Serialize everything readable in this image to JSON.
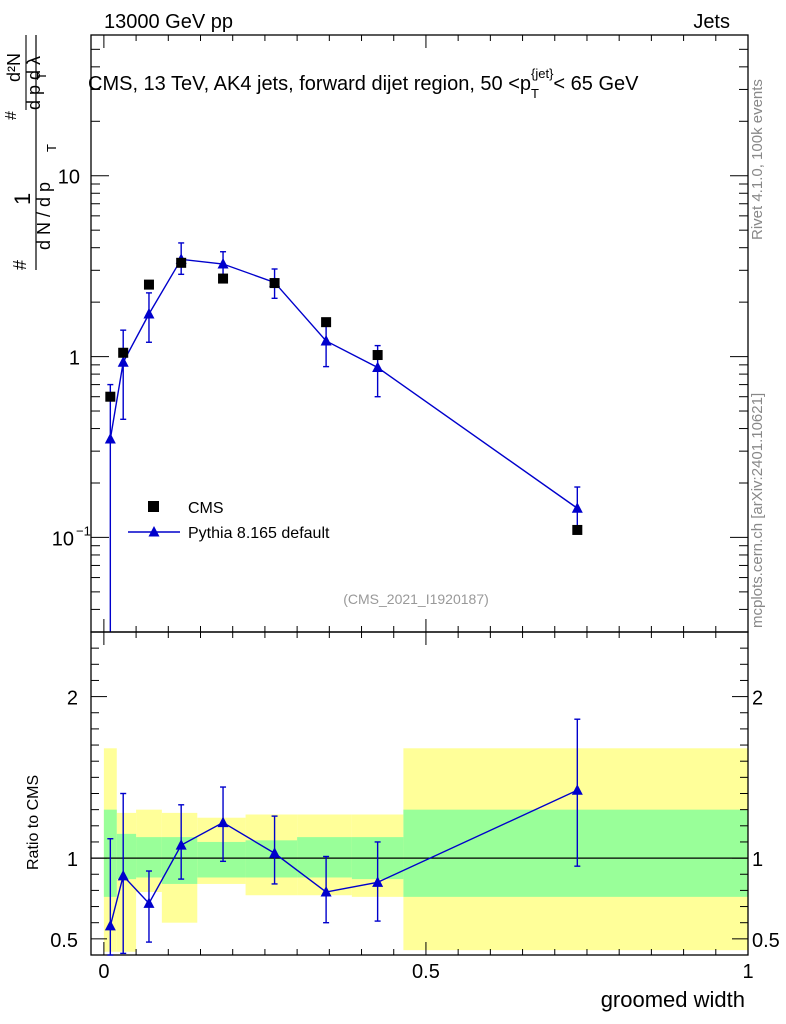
{
  "header": {
    "left": "13000 GeV pp",
    "right": "Jets"
  },
  "side_text": {
    "rivet": "Rivet 4.1.0,  100k events",
    "source": "mcplots.cern.ch [arXiv:2401.10621]"
  },
  "colors": {
    "cms": "#000000",
    "pythia": "#0000cc",
    "band_stat": "#99ff99",
    "band_total": "#ffff99"
  },
  "chart_data": [
    {
      "type": "scatter",
      "title": "CMS, 13 TeV, AK4 jets, forward dijet region, 50 <p_T^{jet}< 65 GeV",
      "ylabel": "1/(dN/dp_T) d²N/(dp_T dλ)",
      "yscale": "log",
      "ylim": [
        0.03,
        60
      ],
      "xlim": [
        -0.02,
        1.0
      ],
      "y_tick_labels": [
        "10^-1",
        "1",
        "10"
      ],
      "annotation": "(CMS_2021_I1920187)",
      "legend": [
        "CMS",
        "Pythia 8.165 default"
      ],
      "legend_position": "lower-left",
      "series": [
        {
          "name": "CMS",
          "marker": "square",
          "x": [
            0.01,
            0.03,
            0.07,
            0.12,
            0.185,
            0.265,
            0.345,
            0.425,
            0.735
          ],
          "y": [
            0.6,
            1.05,
            2.5,
            3.3,
            2.7,
            2.55,
            1.55,
            1.02,
            0.11
          ]
        },
        {
          "name": "Pythia 8.165 default",
          "marker": "triangle",
          "x": [
            0.01,
            0.03,
            0.07,
            0.12,
            0.185,
            0.265,
            0.345,
            0.425,
            0.735
          ],
          "y": [
            0.35,
            0.93,
            1.72,
            3.45,
            3.25,
            2.57,
            1.22,
            0.87,
            0.145
          ],
          "y_low": [
            0.001,
            0.45,
            1.2,
            2.85,
            2.75,
            2.1,
            0.88,
            0.6,
            0.115
          ],
          "y_high": [
            0.7,
            1.4,
            2.25,
            4.25,
            3.8,
            3.05,
            1.55,
            1.15,
            0.19
          ]
        }
      ]
    },
    {
      "type": "scatter",
      "ylabel": "Ratio to CMS",
      "xlabel": "groomed width",
      "ylim": [
        0.4,
        2.4
      ],
      "xlim": [
        -0.02,
        1.0
      ],
      "x_tick_labels": [
        "0",
        "0.5",
        "1"
      ],
      "y_tick_labels": [
        "0.5",
        "1",
        "2"
      ],
      "bands": {
        "edges": [
          0.0,
          0.02,
          0.05,
          0.09,
          0.145,
          0.22,
          0.3,
          0.385,
          0.465,
          1.0
        ],
        "stat": [
          [
            0.76,
            1.3
          ],
          [
            0.87,
            1.15
          ],
          [
            0.88,
            1.13
          ],
          [
            0.84,
            1.13
          ],
          [
            0.88,
            1.1
          ],
          [
            0.88,
            1.11
          ],
          [
            0.88,
            1.13
          ],
          [
            0.87,
            1.13
          ],
          [
            0.76,
            1.3
          ]
        ],
        "total": [
          [
            0.42,
            1.68
          ],
          [
            0.42,
            1.28
          ],
          [
            0.79,
            1.3
          ],
          [
            0.6,
            1.28
          ],
          [
            0.84,
            1.25
          ],
          [
            0.77,
            1.27
          ],
          [
            0.77,
            1.27
          ],
          [
            0.76,
            1.27
          ],
          [
            0.43,
            1.68
          ]
        ]
      },
      "series": [
        {
          "name": "Pythia 8.165 default",
          "x": [
            0.01,
            0.03,
            0.07,
            0.12,
            0.185,
            0.265,
            0.345,
            0.425,
            0.735
          ],
          "y": [
            0.58,
            0.89,
            0.72,
            1.08,
            1.22,
            1.03,
            0.79,
            0.85,
            1.42
          ],
          "y_low": [
            0.4,
            0.41,
            0.48,
            0.87,
            0.98,
            0.84,
            0.6,
            0.61,
            0.95
          ],
          "y_high": [
            1.12,
            1.4,
            0.92,
            1.33,
            1.44,
            1.26,
            1.01,
            1.1,
            1.86
          ]
        }
      ]
    }
  ]
}
